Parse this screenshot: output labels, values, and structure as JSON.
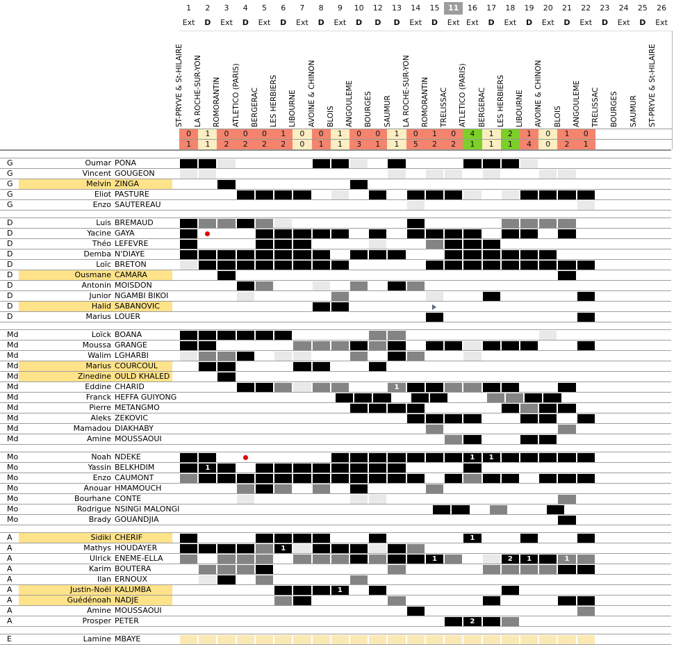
{
  "header": {
    "match_numbers": [
      "1",
      "2",
      "3",
      "4",
      "5",
      "6",
      "7",
      "8",
      "9",
      "10",
      "12",
      "13",
      "14",
      "15",
      "11",
      "16",
      "17",
      "18",
      "19",
      "20",
      "21",
      "22",
      "23",
      "24",
      "25",
      "26"
    ],
    "highlighted_match": "11",
    "venues": [
      "Ext",
      "D",
      "Ext",
      "D",
      "Ext",
      "D",
      "Ext",
      "D",
      "Ext",
      "D",
      "D",
      "D",
      "Ext",
      "D",
      "Ext",
      "Ext",
      "D",
      "Ext",
      "D",
      "Ext",
      "D",
      "Ext",
      "D",
      "Ext",
      "D",
      "Ext"
    ],
    "opponents": [
      "ST-PRYVE & St-HILAIRE",
      "LA ROCHE-SUR-YON",
      "ROMORANTIN",
      "ATLETICO (PARIS)",
      "BERGERAC",
      "LES HERBIERS",
      "LIBOURNE",
      "AVOINE & CHINON",
      "BLOIS",
      "ANGOULEME",
      "BOURGES",
      "SAUMUR",
      "LA ROCHE-SUR-YON",
      "ROMORANTIN",
      "TRELISSAC",
      "ATLETICO (PARIS)",
      "BERGERAC",
      "LES HERBIERS",
      "LIBOURNE",
      "AVOINE & CHINON",
      "BLOIS",
      "ANGOULEME",
      "TRELISSAC",
      "BOURGES",
      "SAUMUR",
      "ST-PRYVE & St-HILAIRE"
    ],
    "scores_for": [
      "0",
      "1",
      "0",
      "0",
      "0",
      "1",
      "0",
      "0",
      "1",
      "0",
      "0",
      "1",
      "0",
      "1",
      "0",
      "4",
      "1",
      "2",
      "1",
      "0",
      "1",
      "0",
      "",
      "",
      "",
      ""
    ],
    "scores_against": [
      "1",
      "1",
      "2",
      "2",
      "2",
      "2",
      "0",
      "1",
      "1",
      "3",
      "1",
      "1",
      "5",
      "2",
      "2",
      "1",
      "1",
      "1",
      "4",
      "0",
      "2",
      "1",
      "",
      "",
      "",
      ""
    ],
    "results": [
      "l",
      "d",
      "l",
      "l",
      "l",
      "l",
      "d",
      "l",
      "d",
      "l",
      "l",
      "d",
      "l",
      "l",
      "l",
      "w",
      "d",
      "w",
      "l",
      "d",
      "l",
      "l",
      "",
      "",
      "",
      ""
    ]
  },
  "colors": {
    "win": "#7cd028",
    "draw": "#fbeec2",
    "loss": "#f4846e",
    "starter": "#000000",
    "substitute": "#848484",
    "bench": "#e9e9e9",
    "unavailable_row": "#fae9b4",
    "name_highlight": "#ffe38a",
    "match11_header_bg": "#9c9c9c",
    "red_dot": "#dd0000",
    "triangle": "#5a6b7a"
  },
  "sections": [
    {
      "label": "G",
      "players": [
        {
          "first": "Oumar",
          "last": "PONA",
          "highlight": false,
          "cells": {
            "1": "B",
            "2": "B",
            "3": "L",
            "8": "B",
            "9": "B",
            "10": "L",
            "13": "B",
            "16": "B",
            "17": "B",
            "18": "B",
            "19": "L"
          }
        },
        {
          "first": "Vincent",
          "last": "GOUGEON",
          "highlight": false,
          "cells": {
            "1": "L",
            "2": "L",
            "13": "L",
            "15": "L",
            "11": "L",
            "17": "L",
            "20": "L",
            "21": "L"
          }
        },
        {
          "first": "Melvin",
          "last": "ZINGA",
          "highlight": true,
          "cells": {
            "3": "B",
            "10": "B"
          }
        },
        {
          "first": "Eliot",
          "last": "PASTURE",
          "highlight": false,
          "cells": {
            "4": "B",
            "5": "B",
            "6": "B",
            "7": "B",
            "9": "L",
            "12": "B",
            "14": "B",
            "15": "B",
            "11": "B",
            "16": "L",
            "18": "L",
            "19": "B",
            "20": "B",
            "21": "B",
            "22": "B"
          }
        },
        {
          "first": "Enzo",
          "last": "SAUTEREAU",
          "highlight": false,
          "cells": {
            "14": "L",
            "22": "L"
          }
        }
      ]
    },
    {
      "label": "D",
      "players": [
        {
          "first": "Luis",
          "last": "BREMAUD",
          "highlight": false,
          "cells": {
            "1": "B",
            "2": "G",
            "3": "G",
            "4": "B",
            "5": "G",
            "6": "L",
            "14": "B",
            "18": "G",
            "19": "G",
            "20": "G",
            "21": "G"
          }
        },
        {
          "first": "Yacine",
          "last": "GAYA",
          "highlight": false,
          "cells": {
            "1": "B",
            "2": "R",
            "5": "B",
            "6": "B",
            "7": "B",
            "8": "B",
            "9": "B",
            "12": "B",
            "14": "B",
            "15": "B",
            "11": "B",
            "16": "B",
            "18": "B",
            "19": "B",
            "21": "B"
          }
        },
        {
          "first": "Théo",
          "last": "LEFEVRE",
          "highlight": false,
          "cells": {
            "1": "B",
            "5": "B",
            "6": "B",
            "7": "B",
            "12": "L",
            "15": "G",
            "11": "B",
            "16": "B",
            "17": "B"
          }
        },
        {
          "first": "Demba",
          "last": "N'DIAYE",
          "highlight": false,
          "cells": {
            "1": "B",
            "2": "B",
            "3": "B",
            "4": "B",
            "5": "B",
            "6": "B",
            "7": "B",
            "8": "B",
            "10": "B",
            "12": "B",
            "13": "B",
            "11": "B",
            "16": "B",
            "17": "B",
            "18": "B",
            "19": "B",
            "20": "B"
          }
        },
        {
          "first": "Loïc",
          "last": "BRETON",
          "highlight": false,
          "cells": {
            "1": "L",
            "2": "B",
            "3": "B",
            "4": "B",
            "5": "B",
            "6": "B",
            "7": "B",
            "8": "B",
            "9": "B",
            "15": "B",
            "11": "B",
            "16": "B",
            "17": "B",
            "18": "B",
            "19": "B",
            "20": "B",
            "21": "B",
            "22": "B"
          }
        },
        {
          "first": "Ousmane",
          "last": "CAMARA",
          "highlight": true,
          "cells": {
            "3": "B",
            "21": "B"
          }
        },
        {
          "first": "Antonin",
          "last": "MOISDON",
          "highlight": false,
          "cells": {
            "4": "B",
            "5": "G",
            "8": "L",
            "10": "G",
            "13": "B",
            "14": "G"
          }
        },
        {
          "first": "Junior",
          "last": "NGAMBI BIKOI",
          "highlight": false,
          "cells": {
            "4": "L",
            "9": "G",
            "15": "L",
            "17": "B",
            "22": "B"
          }
        },
        {
          "first": "Halid",
          "last": "SABANOVIC",
          "highlight": true,
          "cells": {
            "8": "B",
            "9": "B",
            "15": "T"
          }
        },
        {
          "first": "Marius",
          "last": "LOUER",
          "highlight": false,
          "cells": {
            "15": "B",
            "22": "B"
          }
        }
      ]
    },
    {
      "label": "Md",
      "players": [
        {
          "first": "Loïck",
          "last": "BOANA",
          "highlight": false,
          "cells": {
            "1": "B",
            "2": "B",
            "3": "B",
            "4": "B",
            "5": "B",
            "6": "B",
            "12": "G",
            "13": "G",
            "20": "L"
          }
        },
        {
          "first": "Moussa",
          "last": "GRANGE",
          "highlight": false,
          "cells": {
            "1": "B",
            "2": "B",
            "7": "G",
            "8": "G",
            "9": "G",
            "10": "B",
            "12": "G",
            "13": "B",
            "15": "B",
            "11": "B",
            "16": "L",
            "17": "B",
            "18": "B",
            "19": "B",
            "22": "B"
          }
        },
        {
          "first": "Walim",
          "last": "LGHARBI",
          "highlight": false,
          "cells": {
            "1": "L",
            "2": "G",
            "3": "G",
            "4": "B",
            "6": "L",
            "7": "L",
            "10": "G",
            "13": "B",
            "14": "G",
            "16": "L"
          }
        },
        {
          "first": "Marius",
          "last": "COURCOUL",
          "highlight": true,
          "cells": {
            "2": "B",
            "3": "B",
            "7": "B",
            "8": "B",
            "12": "B"
          }
        },
        {
          "first": "Zinedine",
          "last": "OULD KHALED",
          "highlight": true,
          "cells": {
            "3": "B"
          }
        },
        {
          "first": "Eddine",
          "last": "CHARID",
          "highlight": false,
          "cells": {
            "4": "B",
            "5": "B",
            "6": "G",
            "7": "L",
            "8": "G",
            "9": "G",
            "13": "G1",
            "14": "B",
            "15": "B",
            "11": "G",
            "16": "G",
            "17": "B",
            "18": "B",
            "21": "B"
          }
        },
        {
          "first": "Franck",
          "last": "HEFFA GUIYONG",
          "highlight": false,
          "cells": {
            "9": "B",
            "10": "B",
            "12": "B",
            "14": "B",
            "15": "B",
            "17": "G",
            "18": "G",
            "19": "B",
            "20": "B"
          }
        },
        {
          "first": "Pierre",
          "last": "METANGMO",
          "highlight": false,
          "cells": {
            "10": "B",
            "12": "B",
            "13": "B",
            "14": "B",
            "18": "B",
            "19": "G",
            "20": "B",
            "21": "B"
          }
        },
        {
          "first": "Aleks",
          "last": "ZEKOVIC",
          "highlight": false,
          "cells": {
            "14": "B",
            "15": "B",
            "11": "B",
            "16": "B",
            "19": "B",
            "20": "B",
            "22": "B"
          }
        },
        {
          "first": "Mamadou",
          "last": "DIAKHABY",
          "highlight": false,
          "cells": {
            "15": "G",
            "21": "G"
          }
        },
        {
          "first": "Amine",
          "last": "MOUSSAOUI",
          "highlight": false,
          "cells": {
            "11": "G",
            "16": "B",
            "19": "B",
            "20": "B"
          }
        }
      ]
    },
    {
      "label": "Mo",
      "players": [
        {
          "first": "Noah",
          "last": "NDEKE",
          "highlight": false,
          "cells": {
            "1": "B",
            "2": "B",
            "4": "R",
            "9": "B",
            "10": "B",
            "12": "B",
            "13": "B",
            "14": "B",
            "15": "B",
            "11": "B",
            "16": "B1",
            "17": "B1",
            "18": "B",
            "19": "B",
            "20": "B",
            "21": "B",
            "22": "B"
          }
        },
        {
          "first": "Yassin",
          "last": "BELKHDIM",
          "highlight": false,
          "cells": {
            "1": "B",
            "2": "B1",
            "3": "B",
            "5": "B",
            "6": "B",
            "7": "B",
            "8": "B",
            "9": "B",
            "10": "B",
            "12": "B",
            "13": "B",
            "16": "B"
          }
        },
        {
          "first": "Enzo",
          "last": "CAUMONT",
          "highlight": false,
          "cells": {
            "1": "G",
            "2": "B",
            "3": "B",
            "4": "B",
            "5": "B",
            "6": "B",
            "7": "B",
            "8": "B",
            "9": "B",
            "10": "B",
            "12": "B",
            "13": "B",
            "14": "B",
            "11": "B",
            "16": "G",
            "17": "B",
            "18": "B",
            "20": "B",
            "21": "B",
            "22": "B"
          }
        },
        {
          "first": "Anouar",
          "last": "HMAMOUCH",
          "highlight": false,
          "cells": {
            "4": "G",
            "5": "B",
            "6": "G",
            "8": "G",
            "10": "B",
            "15": "G"
          }
        },
        {
          "first": "Bourhane",
          "last": "CONTE",
          "highlight": false,
          "cells": {
            "4": "L",
            "10": "L",
            "12": "L",
            "21": "G"
          }
        },
        {
          "first": "Rodrigue",
          "last": "NSINGI MALONGI",
          "highlight": false,
          "cells": {
            "15": "B",
            "11": "B",
            "17": "G",
            "20": "B"
          }
        },
        {
          "first": "Brady",
          "last": "GOUANDJIA",
          "highlight": false,
          "cells": {
            "21": "B"
          }
        }
      ]
    },
    {
      "label": "A",
      "players": [
        {
          "first": "Sidiki",
          "last": "CHERIF",
          "highlight": true,
          "cells": {
            "1": "B",
            "5": "B",
            "6": "B",
            "7": "B",
            "8": "B",
            "12": "B",
            "16": "B1",
            "19": "B",
            "22": "B"
          }
        },
        {
          "first": "Mathys",
          "last": "HOUDAYER",
          "highlight": false,
          "cells": {
            "1": "B",
            "2": "B",
            "3": "B",
            "4": "B",
            "5": "G",
            "6": "B1",
            "7": "L",
            "8": "B",
            "9": "B",
            "10": "B",
            "12": "L",
            "13": "B",
            "14": "G"
          }
        },
        {
          "first": "Ulrick",
          "last": "ENEME-ELLA",
          "highlight": false,
          "cells": {
            "1": "G",
            "3": "G",
            "4": "G",
            "5": "G",
            "7": "G",
            "8": "G",
            "9": "G",
            "10": "B",
            "12": "G",
            "13": "B",
            "14": "B",
            "15": "B1",
            "11": "G",
            "17": "L",
            "18": "B2",
            "19": "B1",
            "20": "B",
            "21": "G1",
            "22": "G"
          }
        },
        {
          "first": "Karim",
          "last": "BOUTERA",
          "highlight": false,
          "cells": {
            "2": "G",
            "3": "G",
            "4": "G",
            "5": "B",
            "13": "G",
            "17": "G",
            "18": "G",
            "19": "G",
            "20": "G",
            "21": "B",
            "22": "B"
          }
        },
        {
          "first": "Ilan",
          "last": "ERNOUX",
          "highlight": false,
          "cells": {
            "2": "L",
            "3": "B",
            "5": "G",
            "10": "G"
          }
        },
        {
          "first": "Justin-Noël",
          "last": "KALUMBA",
          "highlight": true,
          "cells": {
            "6": "B",
            "7": "B",
            "8": "B",
            "9": "B1",
            "12": "B",
            "18": "B"
          }
        },
        {
          "first": "Guédénoah",
          "last": "NADJE",
          "highlight": true,
          "cells": {
            "6": "G",
            "7": "B",
            "13": "G",
            "17": "B",
            "21": "B",
            "22": "B"
          }
        },
        {
          "first": "Amine",
          "last": "MOUSSAOUI",
          "highlight": false,
          "cells": {
            "14": "B",
            "22": "G"
          }
        },
        {
          "first": "Prosper",
          "last": "PETER",
          "highlight": false,
          "cells": {
            "11": "B",
            "16": "B2",
            "17": "B",
            "18": "G"
          }
        }
      ]
    },
    {
      "label": "E",
      "players": [
        {
          "first": "Lamine",
          "last": "MBAYE",
          "highlight": false,
          "cells": {
            "1": "Y",
            "2": "Y",
            "3": "Y",
            "4": "Y",
            "5": "Y",
            "6": "Y",
            "7": "Y",
            "8": "Y",
            "9": "Y",
            "10": "Y",
            "12": "Y",
            "13": "Y",
            "14": "Y",
            "15": "Y",
            "11": "Y",
            "16": "Y",
            "17": "Y",
            "18": "Y",
            "19": "Y",
            "20": "Y",
            "21": "Y",
            "22": "Y"
          }
        }
      ]
    }
  ]
}
